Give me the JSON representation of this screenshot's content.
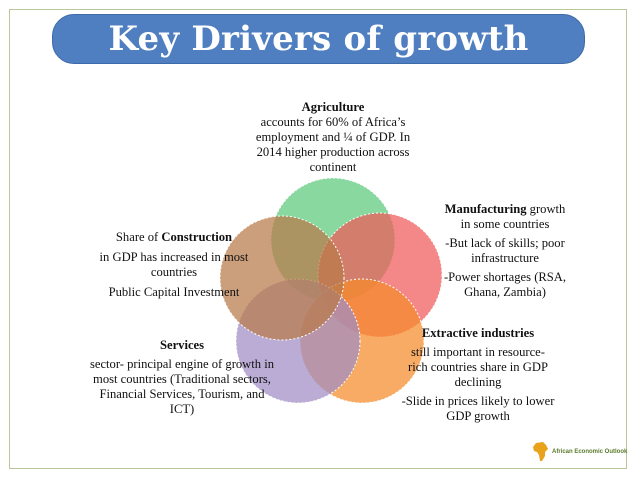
{
  "slide": {
    "title": "Key Drivers of growth",
    "logo_text": "African Economic Outlook"
  },
  "circles": [
    {
      "id": "agriculture",
      "color": "#5cc97a"
    },
    {
      "id": "manufacturing",
      "color": "#f05a5a"
    },
    {
      "id": "extractive",
      "color": "#f58a2a"
    },
    {
      "id": "services",
      "color": "#a08cc4"
    },
    {
      "id": "construction",
      "color": "#b97a4a"
    }
  ],
  "agriculture": {
    "heading": "Agriculture",
    "lines": [
      "accounts for 60% of Africa’s",
      "employment and ¼ of GDP. In",
      "2014 higher production across",
      "continent"
    ]
  },
  "manufacturing": {
    "heading": "Manufacturing",
    "heading_suffix": " growth",
    "lines": [
      "in some countries",
      "-But lack of skills; poor",
      "infrastructure",
      "-Power shortages (RSA,",
      "Ghana, Zambia)"
    ]
  },
  "extractive": {
    "heading": "Extractive industries",
    "lines": [
      "still important in resource-",
      "rich countries share in GDP",
      "declining",
      "-Slide in prices likely to lower",
      "GDP growth"
    ]
  },
  "services": {
    "heading": "Services",
    "lines": [
      "sector- principal engine of growth in",
      "most countries (Traditional sectors,",
      "Financial Services, Tourism, and",
      "ICT)"
    ]
  },
  "construction": {
    "prefix": "Share of ",
    "heading": "Construction",
    "lines": [
      "in GDP has increased in most",
      "countries",
      "Public Capital Investment"
    ]
  }
}
